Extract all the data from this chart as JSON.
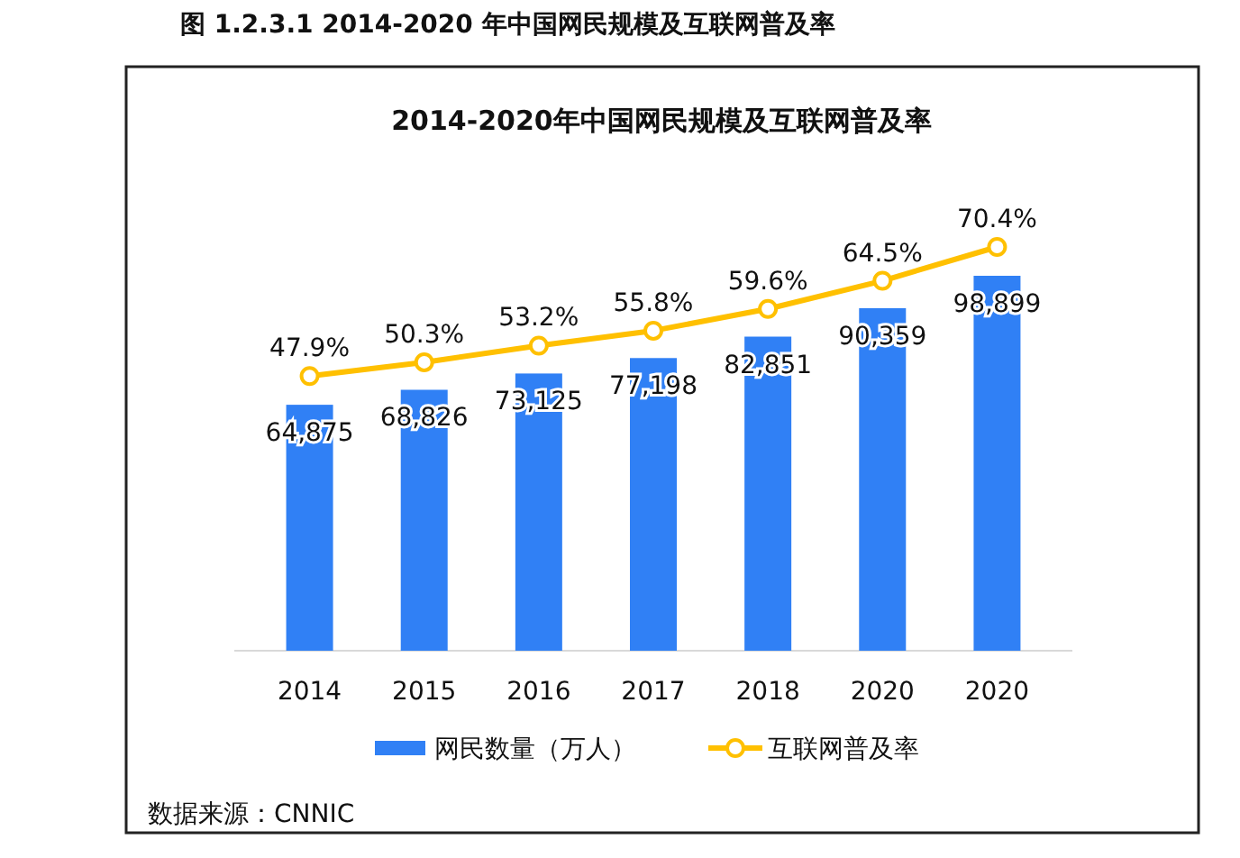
{
  "chart_data": {
    "type": "bar",
    "title": "2014-2020年中国网民规模及互联网普及率",
    "categories": [
      "2014",
      "2015",
      "2016",
      "2017",
      "2018",
      "2020",
      "2020"
    ],
    "series": [
      {
        "name": "网民数量（万人）",
        "color": "#3080f5",
        "values": [
          64875,
          68826,
          73125,
          77198,
          82851,
          90359,
          98899
        ],
        "value_labels": [
          "64,875",
          "68,826",
          "73,125",
          "77,198",
          "82,851",
          "90,359",
          "98,899"
        ]
      },
      {
        "name": "互联网普及率",
        "type": "line",
        "axis": "y2",
        "color": "#ffc000",
        "marker": "circle",
        "values": [
          47.9,
          50.3,
          53.2,
          55.8,
          59.6,
          64.5,
          70.4
        ],
        "value_labels": [
          "47.9%",
          "50.3%",
          "53.2%",
          "55.8%",
          "59.6%",
          "64.5%",
          "70.4%"
        ]
      }
    ],
    "data_labels": true,
    "legend": "bottom",
    "grid": false,
    "annotations": [
      "图 1.2.3.1 2014-2020 年中国网民规模及互联网普及率",
      "数据来源：CNNIC"
    ]
  }
}
